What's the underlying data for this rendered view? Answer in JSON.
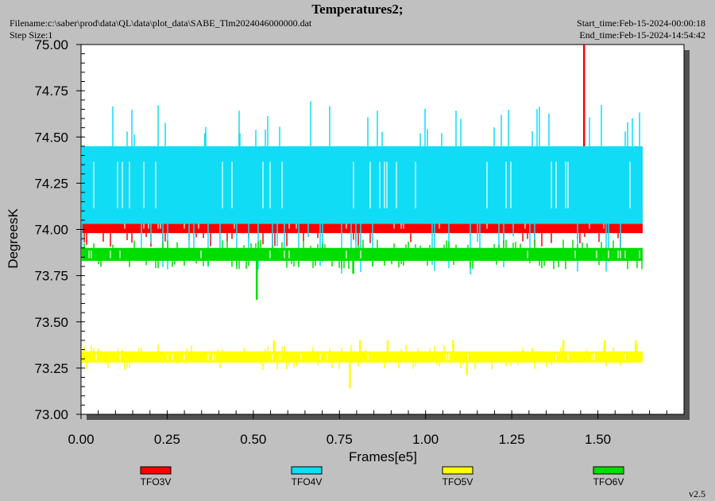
{
  "header": {
    "title": "Temperatures2;",
    "filename": "Filename:c:\\saber\\prod\\data\\QL\\data\\plot_data\\SABE_Tlm2024046000000.dat",
    "step_size": "Step Size:1",
    "start_time": "Start_time:Feb-15-2024-00:00:18",
    "end_time": "End_time:Feb-15-2024-14:54:42"
  },
  "footer": {
    "version": "v2.5"
  },
  "chart_data": {
    "type": "line",
    "title": "Temperatures2;",
    "xlabel": "Frames[e5]",
    "ylabel": "DegreesK",
    "xlim": [
      0.0,
      1.75
    ],
    "ylim": [
      73.0,
      75.0
    ],
    "x_ticks": [
      "0.00",
      "0.25",
      "0.50",
      "0.75",
      "1.00",
      "1.25",
      "1.50"
    ],
    "y_ticks": [
      "73.00",
      "73.25",
      "73.50",
      "73.75",
      "74.00",
      "74.25",
      "74.50",
      "74.75",
      "75.00"
    ],
    "grid": false,
    "legend_position": "bottom",
    "series": [
      {
        "name": "TFO3V",
        "color": "#ff0000",
        "x_range": [
          0.0,
          1.63
        ],
        "band": [
          73.98,
          74.1
        ],
        "spikes": [
          [
            1.46,
            75.0
          ]
        ]
      },
      {
        "name": "TFO4V",
        "color": "#10dcf5",
        "x_range": [
          0.0,
          1.63
        ],
        "band": [
          74.03,
          74.45
        ],
        "spikes": [
          [
            0.36,
            74.52
          ],
          [
            0.46,
            74.52
          ]
        ]
      },
      {
        "name": "TFO5V",
        "color": "#ffff00",
        "x_range": [
          0.0,
          1.63
        ],
        "band": [
          73.28,
          73.34
        ],
        "spikes": [
          [
            0.78,
            73.14
          ],
          [
            0.56,
            73.4
          ],
          [
            0.81,
            73.4
          ],
          [
            0.89,
            73.4
          ],
          [
            1.08,
            73.4
          ],
          [
            1.12,
            73.21
          ],
          [
            1.4,
            73.4
          ],
          [
            1.52,
            73.4
          ],
          [
            1.61,
            73.4
          ]
        ]
      },
      {
        "name": "TFO6V",
        "color": "#00dd00",
        "x_range": [
          0.0,
          1.63
        ],
        "band": [
          73.83,
          73.9
        ],
        "spikes": [
          [
            0.51,
            73.62
          ],
          [
            0.79,
            73.76
          ]
        ]
      }
    ]
  }
}
